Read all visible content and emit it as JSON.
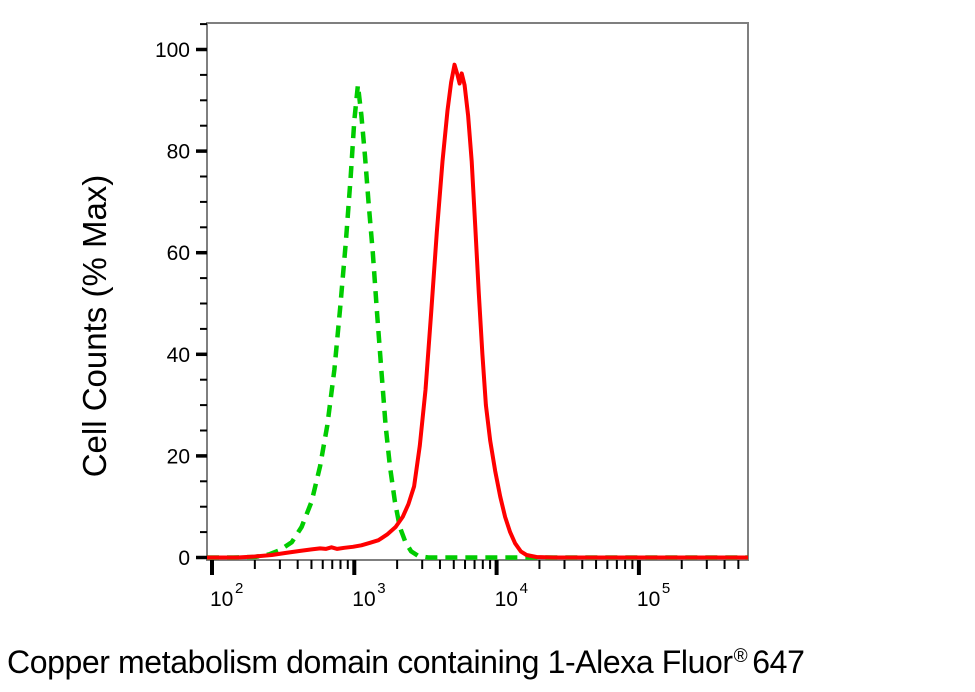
{
  "figure": {
    "background": "#ffffff"
  },
  "chart_data": {
    "type": "line",
    "subtype": "flow-cytometry-histogram-overlay",
    "title": "",
    "ylabel": "Cell Counts (% Max)",
    "xlabel": "Copper metabolism domain containing 1-Alexa Fluor® 647",
    "xlabel_parts": {
      "main": "Copper metabolism domain containing 1-Alexa Fluor",
      "sup": "®",
      "suffix": "647"
    },
    "grid": false,
    "legend": "none",
    "border_color": "#7f7f7f",
    "tick_color": "#000000",
    "x_axis": {
      "scale": "log10",
      "min_log10": 1.965,
      "max_log10": 5.767,
      "major_tick_values": [
        100,
        1000,
        10000,
        100000
      ],
      "major_tick_logs": [
        2,
        3,
        4,
        5
      ],
      "major_tick_labels": [
        {
          "base": "10",
          "exp": "2"
        },
        {
          "base": "10",
          "exp": "3"
        },
        {
          "base": "10",
          "exp": "4"
        },
        {
          "base": "10",
          "exp": "5"
        }
      ],
      "minor_ticks": "multiples 2-9 within each decade"
    },
    "y_axis": {
      "min": 0,
      "max": 105,
      "major_tick_step": 20,
      "minor_tick_step": 5,
      "major_tick_values": [
        0,
        20,
        40,
        60,
        80,
        100
      ],
      "major_tick_labels": [
        "0",
        "20",
        "40",
        "60",
        "80",
        "100"
      ]
    },
    "series": [
      {
        "id": "green-dashed-control",
        "line_style": "dashed",
        "color": "#00cc00",
        "stroke_width": 4.5,
        "dash_pattern": "12 8",
        "peak_x_approx": 1050,
        "peak_y_percent": 93,
        "points_log10x_y": [
          [
            1.965,
            0
          ],
          [
            2.15,
            0
          ],
          [
            2.3,
            0.1
          ],
          [
            2.4,
            0.6
          ],
          [
            2.48,
            1.5
          ],
          [
            2.56,
            3
          ],
          [
            2.63,
            6
          ],
          [
            2.7,
            11
          ],
          [
            2.76,
            18
          ],
          [
            2.81,
            26
          ],
          [
            2.86,
            37
          ],
          [
            2.9,
            49
          ],
          [
            2.94,
            62
          ],
          [
            2.975,
            75
          ],
          [
            3.0,
            86
          ],
          [
            3.025,
            93
          ],
          [
            3.05,
            87
          ],
          [
            3.075,
            79
          ],
          [
            3.1,
            70
          ],
          [
            3.13,
            60
          ],
          [
            3.16,
            48
          ],
          [
            3.19,
            37
          ],
          [
            3.22,
            26
          ],
          [
            3.25,
            18
          ],
          [
            3.285,
            11
          ],
          [
            3.32,
            6
          ],
          [
            3.36,
            3
          ],
          [
            3.4,
            1.2
          ],
          [
            3.45,
            0.3
          ],
          [
            3.52,
            0
          ],
          [
            3.8,
            0
          ],
          [
            4.1,
            0
          ],
          [
            4.4,
            0
          ],
          [
            4.7,
            0
          ],
          [
            5.0,
            0
          ],
          [
            5.3,
            0
          ],
          [
            5.55,
            0
          ],
          [
            5.767,
            0
          ]
        ]
      },
      {
        "id": "red-solid-stained",
        "line_style": "solid",
        "color": "#ff0000",
        "stroke_width": 4,
        "dash_pattern": "",
        "peak_x_approx": 5100,
        "peak_y_percent": 97,
        "points_log10x_y": [
          [
            1.965,
            0
          ],
          [
            2.18,
            0
          ],
          [
            2.3,
            0.2
          ],
          [
            2.42,
            0.5
          ],
          [
            2.52,
            0.9
          ],
          [
            2.62,
            1.3
          ],
          [
            2.7,
            1.6
          ],
          [
            2.76,
            1.8
          ],
          [
            2.8,
            1.7
          ],
          [
            2.84,
            2.0
          ],
          [
            2.88,
            1.7
          ],
          [
            2.93,
            1.9
          ],
          [
            2.99,
            2.1
          ],
          [
            3.05,
            2.4
          ],
          [
            3.11,
            2.9
          ],
          [
            3.17,
            3.4
          ],
          [
            3.23,
            4.5
          ],
          [
            3.29,
            6
          ],
          [
            3.34,
            8
          ],
          [
            3.38,
            10.5
          ],
          [
            3.42,
            14
          ],
          [
            3.46,
            22
          ],
          [
            3.5,
            33
          ],
          [
            3.54,
            48
          ],
          [
            3.58,
            64
          ],
          [
            3.62,
            78
          ],
          [
            3.655,
            88
          ],
          [
            3.68,
            93.5
          ],
          [
            3.704,
            97
          ],
          [
            3.725,
            95
          ],
          [
            3.74,
            93.3
          ],
          [
            3.755,
            95.3
          ],
          [
            3.775,
            93
          ],
          [
            3.8,
            87
          ],
          [
            3.825,
            78
          ],
          [
            3.85,
            65
          ],
          [
            3.875,
            52
          ],
          [
            3.9,
            40
          ],
          [
            3.925,
            30
          ],
          [
            3.955,
            23
          ],
          [
            3.99,
            17
          ],
          [
            4.025,
            12
          ],
          [
            4.06,
            8
          ],
          [
            4.095,
            5
          ],
          [
            4.13,
            2.8
          ],
          [
            4.17,
            1.2
          ],
          [
            4.21,
            0.5
          ],
          [
            4.28,
            0.1
          ],
          [
            4.4,
            0
          ],
          [
            4.8,
            0
          ],
          [
            5.2,
            0
          ],
          [
            5.5,
            0
          ],
          [
            5.767,
            0
          ]
        ]
      }
    ]
  }
}
